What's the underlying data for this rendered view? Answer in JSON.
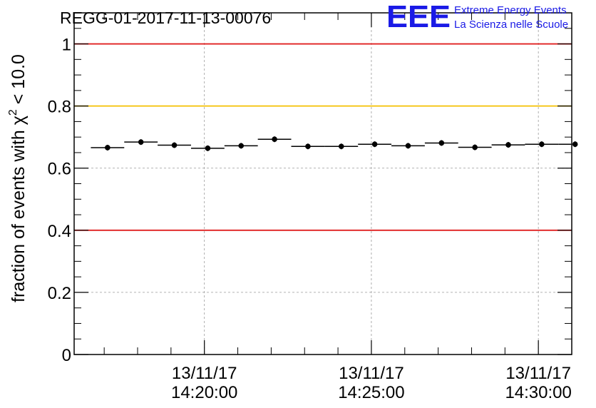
{
  "chart_data": {
    "type": "scatter",
    "title": "REGG-01-2017-11-13-00076",
    "ylabel_prefix": "fraction of events with ",
    "ylabel_symbol": "χ",
    "ylabel_exponent": "2",
    "ylabel_suffix": " < 10.0",
    "xlabel": "",
    "ylim": [
      0,
      1.1
    ],
    "xlim_minutes": [
      16.1,
      31.0
    ],
    "yticks": [
      {
        "value": 0,
        "label": "0"
      },
      {
        "value": 0.2,
        "label": "0.2"
      },
      {
        "value": 0.4,
        "label": "0.4"
      },
      {
        "value": 0.6,
        "label": "0.6"
      },
      {
        "value": 0.8,
        "label": "0.8"
      },
      {
        "value": 1,
        "label": "1"
      }
    ],
    "xticks": [
      {
        "minute": 20,
        "date": "13/11/17",
        "time": "14:20:00"
      },
      {
        "minute": 25,
        "date": "13/11/17",
        "time": "14:25:00"
      },
      {
        "minute": 30,
        "date": "13/11/17",
        "time": "14:30:00"
      }
    ],
    "reference_lines": [
      {
        "value": 1.0,
        "color": "#e02020"
      },
      {
        "value": 0.8,
        "color": "#f5c000"
      },
      {
        "value": 0.4,
        "color": "#e02020"
      }
    ],
    "series": [
      {
        "name": "fraction",
        "x_minutes": [
          17.1,
          18.1,
          19.1,
          20.1,
          21.1,
          22.1,
          23.1,
          24.1,
          25.1,
          26.1,
          27.1,
          28.1,
          29.1,
          30.1,
          31.1
        ],
        "x_halfwidth": 0.5,
        "values": [
          0.666,
          0.684,
          0.674,
          0.664,
          0.672,
          0.693,
          0.67,
          0.67,
          0.677,
          0.672,
          0.681,
          0.667,
          0.675,
          0.677,
          0.677
        ]
      }
    ]
  },
  "logo": {
    "mark": "EEE",
    "line1": "Extreme Energy Events",
    "line2": "La Scienza nelle Scuole",
    "color": "#1a1ae6"
  }
}
